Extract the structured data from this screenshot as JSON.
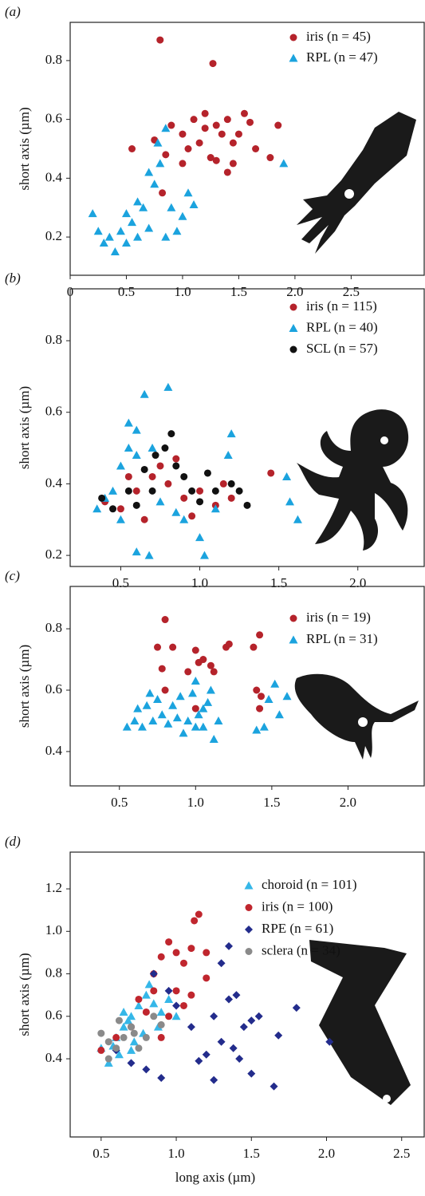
{
  "chart_data": [
    {
      "type": "scatter",
      "panel": "(a)",
      "ylabel": "short axis (µm)",
      "xlim": [
        0,
        3.15
      ],
      "ylim": [
        0.07,
        0.93
      ],
      "xticks": [
        0,
        0.5,
        {
          "value": 1,
          "label": "1.0"
        },
        1.5,
        {
          "value": 2,
          "label": "2.0"
        },
        2.5
      ],
      "yticks": [
        0.2,
        0.4,
        0.6,
        0.8
      ],
      "legend": "upper right",
      "series": [
        {
          "name": "iris (n = 45)",
          "color": "#b5232b",
          "marker": "circle",
          "x": [
            0.8,
            1.27,
            0.55,
            0.75,
            0.85,
            0.9,
            1.0,
            1.05,
            1.1,
            1.15,
            1.2,
            1.25,
            1.3,
            1.35,
            1.4,
            1.45,
            1.5,
            1.55,
            1.6,
            1.65,
            1.78,
            1.85,
            1.3,
            1.4,
            0.82,
            1.2,
            1.45,
            1.0
          ],
          "values": [
            0.87,
            0.79,
            0.5,
            0.53,
            0.48,
            0.58,
            0.55,
            0.5,
            0.6,
            0.52,
            0.57,
            0.47,
            0.58,
            0.55,
            0.6,
            0.52,
            0.55,
            0.62,
            0.59,
            0.5,
            0.47,
            0.58,
            0.46,
            0.42,
            0.35,
            0.62,
            0.45,
            0.45
          ]
        },
        {
          "name": "RPL (n = 47)",
          "color": "#1ba3de",
          "marker": "triangle",
          "x": [
            0.2,
            0.25,
            0.3,
            0.35,
            0.4,
            0.45,
            0.5,
            0.55,
            0.6,
            0.65,
            0.7,
            0.75,
            0.78,
            0.85,
            0.7,
            0.9,
            0.95,
            1.0,
            1.05,
            1.1,
            0.8,
            1.9,
            0.6,
            0.5,
            0.85
          ],
          "values": [
            0.28,
            0.22,
            0.18,
            0.2,
            0.15,
            0.22,
            0.18,
            0.25,
            0.2,
            0.3,
            0.23,
            0.38,
            0.52,
            0.57,
            0.42,
            0.3,
            0.22,
            0.27,
            0.35,
            0.31,
            0.45,
            0.45,
            0.32,
            0.28,
            0.2
          ]
        }
      ]
    },
    {
      "type": "scatter",
      "panel": "(b)",
      "ylabel": "short axis (µm)",
      "xlim": [
        0.18,
        2.42
      ],
      "ylim": [
        0.169,
        0.945
      ],
      "xticks": [
        0.5,
        {
          "value": 1,
          "label": "1.0"
        },
        1.5,
        {
          "value": 2,
          "label": "2.0"
        }
      ],
      "yticks": [
        0.2,
        0.4,
        0.6,
        0.8
      ],
      "legend": "upper right",
      "series": [
        {
          "name": "iris (n = 115)",
          "color": "#b5232b",
          "marker": "circle",
          "x": [
            0.4,
            0.5,
            0.6,
            0.7,
            0.8,
            0.9,
            1.0,
            1.1,
            1.2,
            0.65,
            0.75,
            0.85,
            1.45,
            0.95,
            0.55,
            1.15
          ],
          "values": [
            0.35,
            0.33,
            0.38,
            0.42,
            0.4,
            0.36,
            0.38,
            0.34,
            0.36,
            0.3,
            0.45,
            0.47,
            0.43,
            0.31,
            0.42,
            0.4
          ]
        },
        {
          "name": "RPL (n = 40)",
          "color": "#1ba3de",
          "marker": "triangle",
          "x": [
            0.55,
            0.6,
            0.65,
            0.8,
            0.5,
            0.6,
            0.7,
            0.35,
            0.4,
            0.5,
            0.6,
            0.68,
            0.75,
            0.85,
            0.9,
            1.0,
            1.03,
            1.1,
            1.2,
            1.18,
            1.55,
            1.57,
            1.62,
            0.55,
            0.45
          ],
          "values": [
            0.5,
            0.55,
            0.65,
            0.67,
            0.45,
            0.48,
            0.5,
            0.33,
            0.36,
            0.3,
            0.21,
            0.2,
            0.35,
            0.32,
            0.3,
            0.25,
            0.2,
            0.33,
            0.54,
            0.48,
            0.42,
            0.35,
            0.3,
            0.57,
            0.38
          ]
        },
        {
          "name": "SCL (n = 57)",
          "color": "#111111",
          "marker": "circle",
          "x": [
            0.38,
            0.45,
            0.55,
            0.65,
            0.72,
            0.78,
            0.82,
            0.9,
            0.95,
            1.0,
            1.05,
            1.1,
            1.2,
            1.3,
            0.7,
            0.6,
            0.85,
            1.25
          ],
          "values": [
            0.36,
            0.33,
            0.38,
            0.44,
            0.48,
            0.5,
            0.54,
            0.42,
            0.38,
            0.35,
            0.43,
            0.38,
            0.4,
            0.34,
            0.38,
            0.34,
            0.45,
            0.38
          ]
        }
      ]
    },
    {
      "type": "scatter",
      "panel": "(c)",
      "ylabel": "short axis (µm)",
      "xlim": [
        0.177,
        2.5
      ],
      "ylim": [
        0.288,
        0.938
      ],
      "xticks": [
        0.5,
        {
          "value": 1,
          "label": "1.0"
        },
        1.5,
        {
          "value": 2,
          "label": "2.0"
        }
      ],
      "yticks": [
        0.4,
        0.6,
        0.8
      ],
      "legend": "upper right",
      "series": [
        {
          "name": "iris (n = 19)",
          "color": "#b5232b",
          "marker": "circle",
          "x": [
            0.8,
            0.75,
            0.85,
            0.78,
            0.95,
            1.0,
            1.02,
            1.05,
            1.2,
            1.22,
            1.1,
            1.12,
            0.8,
            1.0,
            1.38,
            1.42,
            1.4,
            1.43,
            1.42
          ],
          "values": [
            0.83,
            0.74,
            0.74,
            0.67,
            0.66,
            0.73,
            0.69,
            0.7,
            0.74,
            0.75,
            0.68,
            0.66,
            0.6,
            0.54,
            0.74,
            0.78,
            0.6,
            0.58,
            0.54
          ]
        },
        {
          "name": "RPL (n = 31)",
          "color": "#1ba3de",
          "marker": "triangle",
          "x": [
            0.55,
            0.6,
            0.62,
            0.68,
            0.7,
            0.72,
            0.78,
            0.82,
            0.85,
            0.9,
            0.92,
            0.95,
            1.0,
            1.02,
            1.05,
            1.08,
            1.1,
            1.12,
            1.15,
            1.4,
            1.45,
            1.48,
            1.52,
            1.55,
            1.6,
            0.65,
            0.75,
            0.88,
            1.0,
            1.05,
            0.98
          ],
          "values": [
            0.48,
            0.5,
            0.54,
            0.55,
            0.59,
            0.5,
            0.52,
            0.49,
            0.55,
            0.58,
            0.46,
            0.5,
            0.63,
            0.52,
            0.48,
            0.56,
            0.6,
            0.44,
            0.5,
            0.47,
            0.48,
            0.57,
            0.62,
            0.52,
            0.58,
            0.48,
            0.57,
            0.51,
            0.48,
            0.54,
            0.59
          ]
        }
      ]
    },
    {
      "type": "scatter",
      "panel": "(d)",
      "ylabel": "short axis (µm)",
      "xlabel": "long axis (µm)",
      "xlim": [
        0.294,
        2.65
      ],
      "ylim": [
        0.032,
        1.373
      ],
      "xticks": [
        0.5,
        {
          "value": 1,
          "label": "1.0"
        },
        1.5,
        {
          "value": 2,
          "label": "2.0"
        },
        2.5
      ],
      "yticks": [
        0.4,
        0.6,
        0.8,
        {
          "value": 1,
          "label": "1.0"
        },
        1.2
      ],
      "legend": "upper right",
      "series": [
        {
          "name": "choroid (n = 101)",
          "color": "#35b7e8",
          "marker": "triangle",
          "x": [
            0.55,
            0.5,
            0.6,
            0.65,
            0.7,
            0.75,
            0.8,
            0.85,
            0.9,
            0.72,
            0.78,
            0.62,
            0.68,
            0.82,
            0.58,
            0.88,
            0.95,
            1.0,
            0.7,
            0.65
          ],
          "values": [
            0.38,
            0.45,
            0.5,
            0.55,
            0.6,
            0.65,
            0.7,
            0.66,
            0.62,
            0.48,
            0.52,
            0.42,
            0.58,
            0.75,
            0.46,
            0.55,
            0.68,
            0.6,
            0.44,
            0.62
          ]
        },
        {
          "name": "iris (n = 100)",
          "color": "#c0262e",
          "marker": "circle",
          "x": [
            0.5,
            0.6,
            0.7,
            0.8,
            0.85,
            0.9,
            0.95,
            1.0,
            1.05,
            1.1,
            1.15,
            1.12,
            1.2,
            1.0,
            0.95,
            1.05,
            0.9,
            1.1,
            0.75,
            0.85,
            1.2
          ],
          "values": [
            0.44,
            0.5,
            0.55,
            0.62,
            0.8,
            0.88,
            0.95,
            0.9,
            0.85,
            0.92,
            1.08,
            1.05,
            0.9,
            0.72,
            0.6,
            0.65,
            0.5,
            0.7,
            0.68,
            0.72,
            0.78
          ]
        },
        {
          "name": "RPE (n = 61)",
          "color": "#232c8c",
          "marker": "diamond",
          "x": [
            0.6,
            0.7,
            0.8,
            0.9,
            0.85,
            0.95,
            1.0,
            1.1,
            1.15,
            1.2,
            1.25,
            1.3,
            1.35,
            1.35,
            1.4,
            1.45,
            1.5,
            1.42,
            1.25,
            1.5,
            1.55,
            1.65,
            1.68,
            1.8,
            2.02,
            1.3,
            1.38
          ],
          "values": [
            0.44,
            0.38,
            0.35,
            0.31,
            0.8,
            0.72,
            0.65,
            0.55,
            0.39,
            0.42,
            0.6,
            0.85,
            0.93,
            0.68,
            0.7,
            0.55,
            0.58,
            0.4,
            0.3,
            0.33,
            0.6,
            0.27,
            0.51,
            0.64,
            0.48,
            0.48,
            0.45
          ]
        },
        {
          "name": "sclera (n = 34)",
          "color": "#8a8a8a",
          "marker": "circle",
          "x": [
            0.5,
            0.55,
            0.6,
            0.65,
            0.7,
            0.75,
            0.8,
            0.85,
            0.9,
            0.55,
            0.62,
            0.72
          ],
          "values": [
            0.52,
            0.48,
            0.45,
            0.5,
            0.55,
            0.45,
            0.5,
            0.6,
            0.56,
            0.4,
            0.58,
            0.52
          ]
        }
      ]
    }
  ]
}
